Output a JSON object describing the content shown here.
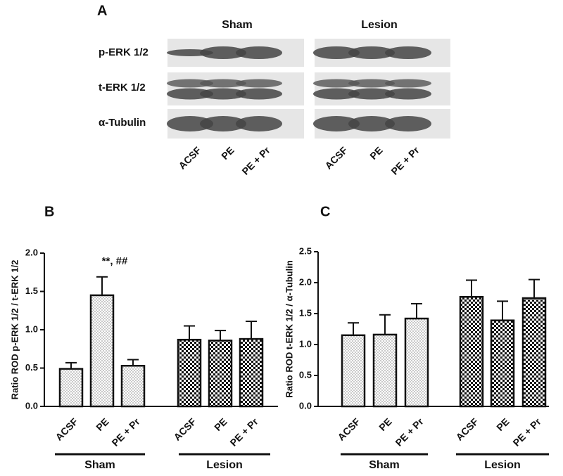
{
  "panel_a": {
    "label": "A",
    "groups": [
      "Sham",
      "Lesion"
    ],
    "rows": [
      "p-ERK 1/2",
      "t-ERK 1/2",
      "α-Tubulin"
    ],
    "lanes": [
      [
        "ACSF",
        "PE",
        "PE + Pr"
      ],
      [
        "ACSF",
        "PE",
        "PE + Pr"
      ]
    ]
  },
  "chart_data": [
    {
      "type": "bar",
      "panel_label": "B",
      "y_label": "Ratio ROD p-ERK 1/2 / t-ERK 1/2",
      "categories": [
        "ACSF",
        "PE",
        "PE + Pr",
        "ACSF",
        "PE",
        "PE + Pr"
      ],
      "values": [
        0.49,
        1.45,
        0.53,
        0.87,
        0.86,
        0.88
      ],
      "errors": [
        0.08,
        0.24,
        0.08,
        0.18,
        0.13,
        0.23
      ],
      "bar_fill": [
        "dots",
        "dots",
        "dots",
        "checker",
        "checker",
        "checker"
      ],
      "group_labels": [
        "Sham",
        "Lesion"
      ],
      "annotation": "**, ##",
      "ylim": [
        0,
        2
      ],
      "yticks": [
        {
          "value": 0,
          "label": "0.0"
        },
        {
          "value": 0.5,
          "label": "0.5"
        },
        {
          "value": 1,
          "label": "1.0"
        },
        {
          "value": 1.5,
          "label": "1.5"
        },
        {
          "value": 2,
          "label": "2.0"
        }
      ]
    },
    {
      "type": "bar",
      "panel_label": "C",
      "y_label": "Ratio ROD t-ERK 1/2 / α-Tubulin",
      "categories": [
        "ACSF",
        "PE",
        "PE + Pr",
        "ACSF",
        "PE",
        "PE + Pr"
      ],
      "values": [
        1.15,
        1.16,
        1.42,
        1.77,
        1.39,
        1.75
      ],
      "errors": [
        0.2,
        0.32,
        0.24,
        0.27,
        0.31,
        0.3
      ],
      "bar_fill": [
        "dots",
        "dots",
        "dots",
        "checker",
        "checker",
        "checker"
      ],
      "group_labels": [
        "Sham",
        "Lesion"
      ],
      "ylim": [
        0,
        2.5
      ],
      "yticks": [
        {
          "value": 0,
          "label": "0.0"
        },
        {
          "value": 0.5,
          "label": "0.5"
        },
        {
          "value": 1,
          "label": "1.0"
        },
        {
          "value": 1.5,
          "label": "1.5"
        },
        {
          "value": 2,
          "label": "2.0"
        },
        {
          "value": 2.5,
          "label": "2.5"
        }
      ]
    }
  ]
}
